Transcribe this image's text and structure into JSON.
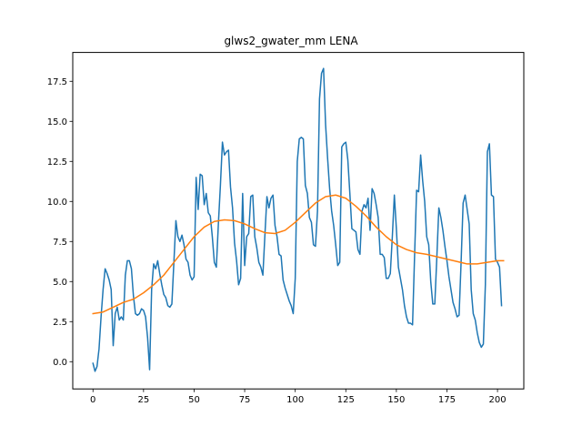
{
  "chart_data": {
    "type": "line",
    "title": "glws2_gwater_mm LENA",
    "xlabel": "",
    "ylabel": "",
    "xlim": [
      -10,
      213
    ],
    "ylim": [
      -1.7,
      19.3
    ],
    "xticks": [
      0,
      25,
      50,
      75,
      100,
      125,
      150,
      175,
      200
    ],
    "yticks": [
      0.0,
      2.5,
      5.0,
      7.5,
      10.0,
      12.5,
      15.0,
      17.5
    ],
    "ytick_labels": [
      "0.0",
      "2.5",
      "5.0",
      "7.5",
      "10.0",
      "12.5",
      "15.0",
      "17.5"
    ],
    "grid": false,
    "legend": "none",
    "series": [
      {
        "color": "#1f77b4",
        "points": [
          [
            0,
            -0.1
          ],
          [
            1,
            -0.6
          ],
          [
            2,
            -0.3
          ],
          [
            3,
            0.8
          ],
          [
            4,
            2.8
          ],
          [
            5,
            4.5
          ],
          [
            6,
            5.8
          ],
          [
            7,
            5.5
          ],
          [
            8,
            5.1
          ],
          [
            9,
            4.5
          ],
          [
            10,
            1.0
          ],
          [
            11,
            3.0
          ],
          [
            12,
            3.4
          ],
          [
            13,
            2.6
          ],
          [
            14,
            2.8
          ],
          [
            15,
            2.6
          ],
          [
            16,
            5.4
          ],
          [
            17,
            6.3
          ],
          [
            18,
            6.3
          ],
          [
            19,
            5.8
          ],
          [
            20,
            4.1
          ],
          [
            21,
            3.0
          ],
          [
            22,
            2.9
          ],
          [
            23,
            3.0
          ],
          [
            24,
            3.3
          ],
          [
            25,
            3.2
          ],
          [
            26,
            2.8
          ],
          [
            27,
            1.5
          ],
          [
            28,
            -0.5
          ],
          [
            29,
            4.5
          ],
          [
            30,
            6.1
          ],
          [
            31,
            5.8
          ],
          [
            32,
            6.3
          ],
          [
            33,
            5.5
          ],
          [
            34,
            4.8
          ],
          [
            35,
            4.2
          ],
          [
            36,
            4.0
          ],
          [
            37,
            3.5
          ],
          [
            38,
            3.4
          ],
          [
            39,
            3.6
          ],
          [
            40,
            6.2
          ],
          [
            41,
            8.8
          ],
          [
            42,
            7.8
          ],
          [
            43,
            7.5
          ],
          [
            44,
            7.9
          ],
          [
            45,
            7.3
          ],
          [
            46,
            6.4
          ],
          [
            47,
            6.2
          ],
          [
            48,
            5.4
          ],
          [
            49,
            5.1
          ],
          [
            50,
            5.3
          ],
          [
            51,
            11.5
          ],
          [
            52,
            9.5
          ],
          [
            53,
            11.7
          ],
          [
            54,
            11.6
          ],
          [
            55,
            9.8
          ],
          [
            56,
            10.5
          ],
          [
            57,
            9.3
          ],
          [
            58,
            9.1
          ],
          [
            59,
            7.8
          ],
          [
            60,
            6.2
          ],
          [
            61,
            5.9
          ],
          [
            62,
            8.6
          ],
          [
            63,
            11.0
          ],
          [
            64,
            13.7
          ],
          [
            65,
            12.9
          ],
          [
            66,
            13.1
          ],
          [
            67,
            13.2
          ],
          [
            68,
            10.9
          ],
          [
            69,
            9.6
          ],
          [
            70,
            7.4
          ],
          [
            71,
            6.3
          ],
          [
            72,
            4.8
          ],
          [
            73,
            5.2
          ],
          [
            74,
            10.5
          ],
          [
            75,
            6.0
          ],
          [
            76,
            7.8
          ],
          [
            77,
            8.0
          ],
          [
            78,
            10.3
          ],
          [
            79,
            10.4
          ],
          [
            80,
            7.8
          ],
          [
            81,
            7.1
          ],
          [
            82,
            6.2
          ],
          [
            83,
            5.9
          ],
          [
            84,
            5.4
          ],
          [
            85,
            7.9
          ],
          [
            86,
            10.3
          ],
          [
            87,
            9.6
          ],
          [
            88,
            10.2
          ],
          [
            89,
            10.4
          ],
          [
            90,
            8.5
          ],
          [
            91,
            7.8
          ],
          [
            92,
            6.7
          ],
          [
            93,
            6.6
          ],
          [
            94,
            5.1
          ],
          [
            95,
            4.6
          ],
          [
            96,
            4.2
          ],
          [
            97,
            3.8
          ],
          [
            98,
            3.5
          ],
          [
            99,
            3.0
          ],
          [
            100,
            5.2
          ],
          [
            101,
            12.5
          ],
          [
            102,
            13.9
          ],
          [
            103,
            14.0
          ],
          [
            104,
            13.9
          ],
          [
            105,
            11.0
          ],
          [
            106,
            10.5
          ],
          [
            107,
            9.0
          ],
          [
            108,
            8.7
          ],
          [
            109,
            7.3
          ],
          [
            110,
            7.2
          ],
          [
            111,
            9.4
          ],
          [
            112,
            16.4
          ],
          [
            113,
            18.0
          ],
          [
            114,
            18.3
          ],
          [
            115,
            14.8
          ],
          [
            116,
            12.7
          ],
          [
            117,
            10.8
          ],
          [
            118,
            9.4
          ],
          [
            119,
            8.5
          ],
          [
            120,
            7.3
          ],
          [
            121,
            6.0
          ],
          [
            122,
            6.2
          ],
          [
            123,
            13.4
          ],
          [
            124,
            13.6
          ],
          [
            125,
            13.7
          ],
          [
            126,
            12.6
          ],
          [
            127,
            10.5
          ],
          [
            128,
            8.3
          ],
          [
            129,
            8.2
          ],
          [
            130,
            8.1
          ],
          [
            131,
            7.0
          ],
          [
            132,
            6.7
          ],
          [
            133,
            9.4
          ],
          [
            134,
            9.8
          ],
          [
            135,
            9.6
          ],
          [
            136,
            10.2
          ],
          [
            137,
            8.2
          ],
          [
            138,
            10.8
          ],
          [
            139,
            10.5
          ],
          [
            140,
            9.8
          ],
          [
            141,
            9.0
          ],
          [
            142,
            6.7
          ],
          [
            143,
            6.7
          ],
          [
            144,
            6.5
          ],
          [
            145,
            5.2
          ],
          [
            146,
            5.2
          ],
          [
            147,
            5.5
          ],
          [
            148,
            7.8
          ],
          [
            149,
            10.4
          ],
          [
            150,
            8.3
          ],
          [
            151,
            5.9
          ],
          [
            152,
            5.2
          ],
          [
            153,
            4.5
          ],
          [
            154,
            3.5
          ],
          [
            155,
            2.8
          ],
          [
            156,
            2.4
          ],
          [
            157,
            2.4
          ],
          [
            158,
            2.3
          ],
          [
            159,
            6.6
          ],
          [
            160,
            10.7
          ],
          [
            161,
            10.6
          ],
          [
            162,
            12.9
          ],
          [
            163,
            11.3
          ],
          [
            164,
            10.0
          ],
          [
            165,
            7.8
          ],
          [
            166,
            7.3
          ],
          [
            167,
            5.0
          ],
          [
            168,
            3.6
          ],
          [
            169,
            3.6
          ],
          [
            170,
            6.5
          ],
          [
            171,
            9.6
          ],
          [
            172,
            9.0
          ],
          [
            173,
            8.2
          ],
          [
            174,
            7.2
          ],
          [
            175,
            6.3
          ],
          [
            176,
            5.3
          ],
          [
            177,
            4.5
          ],
          [
            178,
            3.7
          ],
          [
            179,
            3.3
          ],
          [
            180,
            2.8
          ],
          [
            181,
            2.9
          ],
          [
            182,
            6.2
          ],
          [
            183,
            9.9
          ],
          [
            184,
            10.4
          ],
          [
            185,
            9.5
          ],
          [
            186,
            8.6
          ],
          [
            187,
            4.5
          ],
          [
            188,
            3.0
          ],
          [
            189,
            2.6
          ],
          [
            190,
            1.8
          ],
          [
            191,
            1.2
          ],
          [
            192,
            0.9
          ],
          [
            193,
            1.1
          ],
          [
            194,
            4.8
          ],
          [
            195,
            13.1
          ],
          [
            196,
            13.6
          ],
          [
            197,
            10.4
          ],
          [
            198,
            10.3
          ],
          [
            199,
            6.4
          ],
          [
            200,
            6.2
          ],
          [
            201,
            5.9
          ],
          [
            202,
            3.5
          ]
        ]
      },
      {
        "color": "#ff7f0e",
        "points": [
          [
            0,
            3.0
          ],
          [
            5,
            3.1
          ],
          [
            10,
            3.4
          ],
          [
            15,
            3.7
          ],
          [
            20,
            3.9
          ],
          [
            25,
            4.3
          ],
          [
            30,
            4.8
          ],
          [
            35,
            5.4
          ],
          [
            40,
            6.2
          ],
          [
            45,
            7.0
          ],
          [
            50,
            7.8
          ],
          [
            55,
            8.4
          ],
          [
            60,
            8.75
          ],
          [
            65,
            8.85
          ],
          [
            70,
            8.8
          ],
          [
            75,
            8.6
          ],
          [
            80,
            8.3
          ],
          [
            85,
            8.05
          ],
          [
            90,
            8.0
          ],
          [
            95,
            8.2
          ],
          [
            100,
            8.7
          ],
          [
            105,
            9.3
          ],
          [
            110,
            9.9
          ],
          [
            115,
            10.3
          ],
          [
            120,
            10.4
          ],
          [
            125,
            10.2
          ],
          [
            130,
            9.7
          ],
          [
            135,
            9.1
          ],
          [
            140,
            8.4
          ],
          [
            145,
            7.8
          ],
          [
            150,
            7.3
          ],
          [
            155,
            7.0
          ],
          [
            160,
            6.8
          ],
          [
            165,
            6.7
          ],
          [
            170,
            6.55
          ],
          [
            175,
            6.4
          ],
          [
            180,
            6.25
          ],
          [
            185,
            6.1
          ],
          [
            190,
            6.1
          ],
          [
            195,
            6.2
          ],
          [
            200,
            6.3
          ],
          [
            203,
            6.3
          ]
        ]
      }
    ]
  }
}
